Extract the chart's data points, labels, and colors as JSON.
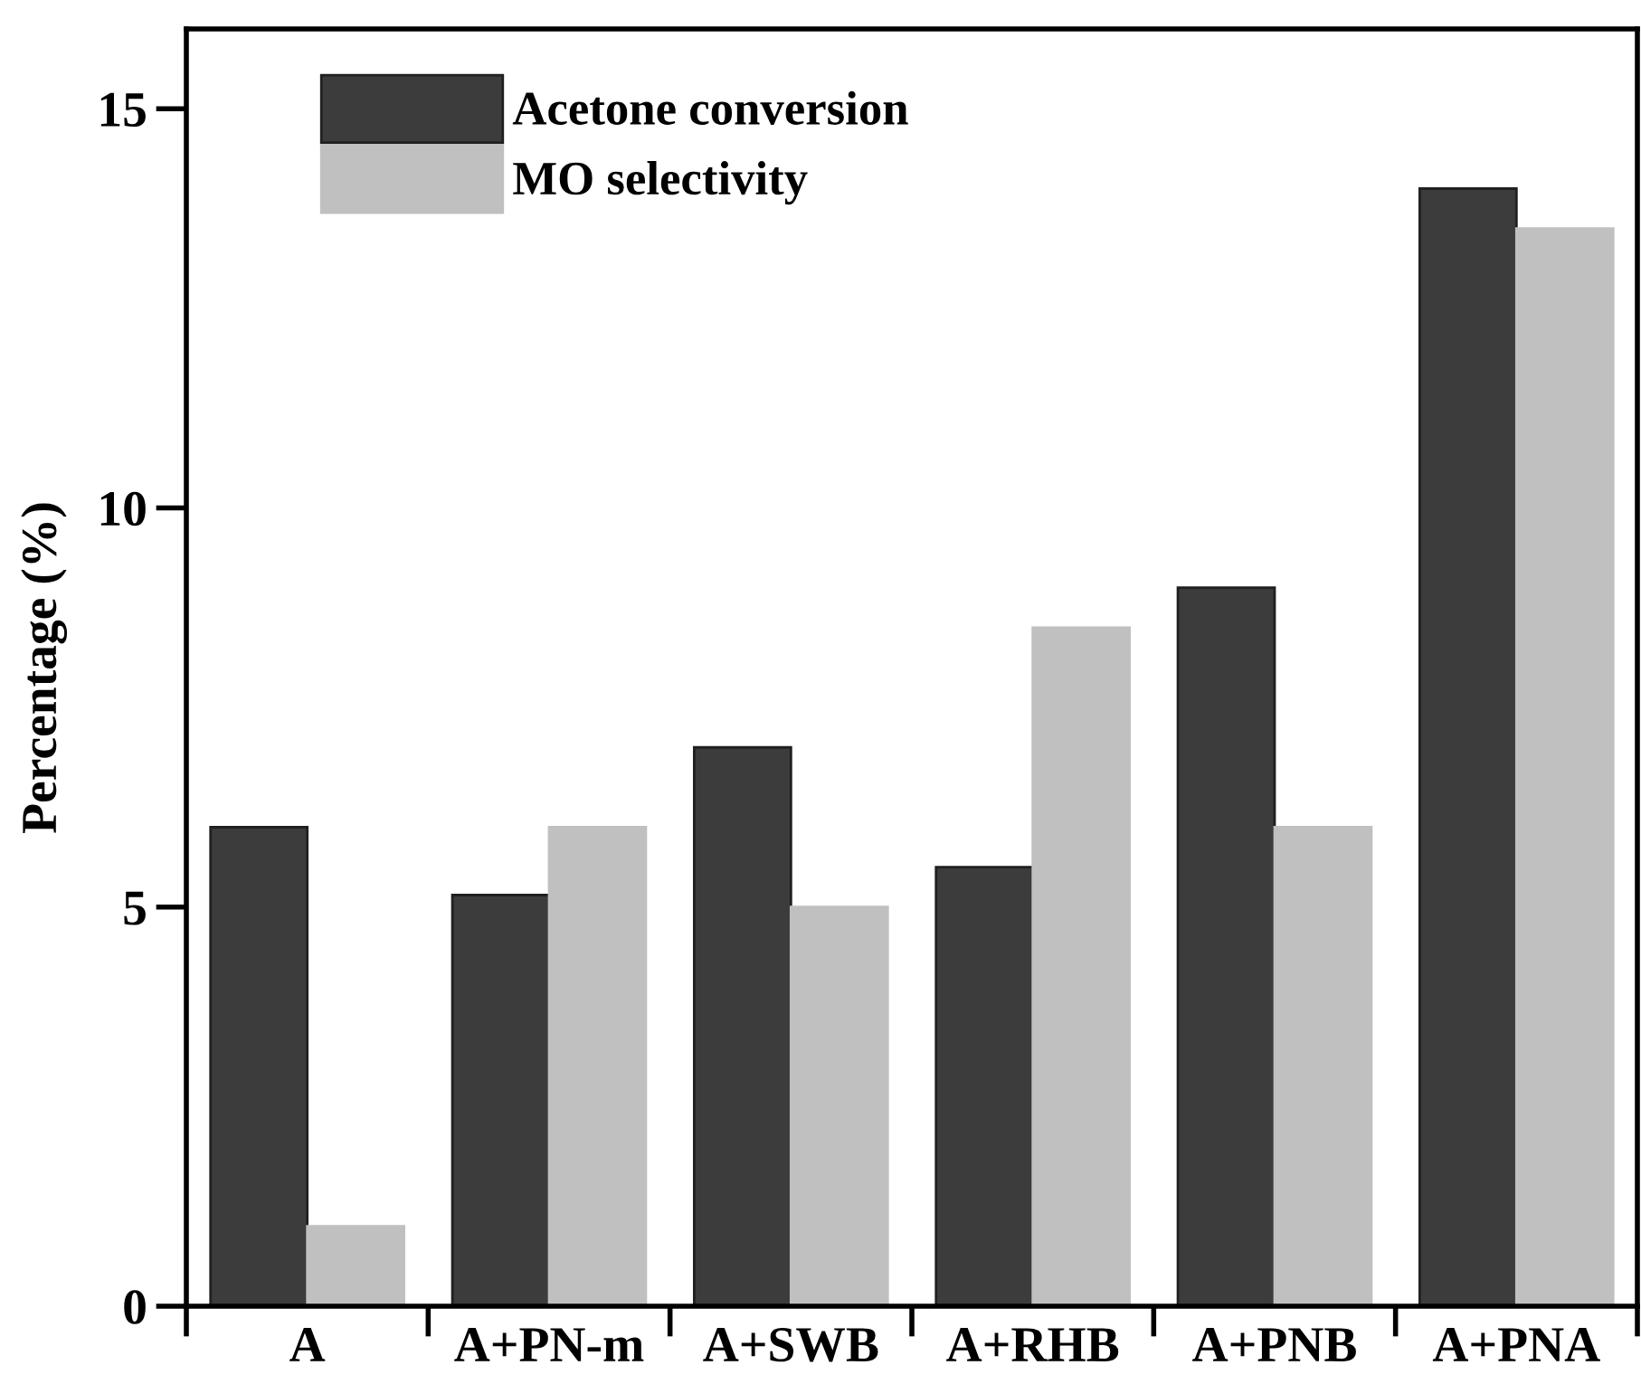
{
  "chart_data": {
    "type": "bar",
    "ylabel": "Percentage (%)",
    "categories": [
      "A",
      "A+PN-m",
      "A+SWB",
      "A+RHB",
      "A+PNB",
      "A+PNA"
    ],
    "series": [
      {
        "name": "Acetone conversion",
        "color": "#3c3c3c",
        "values": [
          6,
          5.15,
          7,
          5.5,
          9,
          14
        ]
      },
      {
        "name": "MO selectivity",
        "color": "#c0c0c0",
        "values": [
          1,
          6,
          5,
          8.5,
          6,
          13.5
        ]
      }
    ],
    "ylim": [
      0,
      16
    ],
    "yticks": [
      0,
      5,
      10,
      15
    ],
    "grid": false,
    "legend": "top left"
  }
}
